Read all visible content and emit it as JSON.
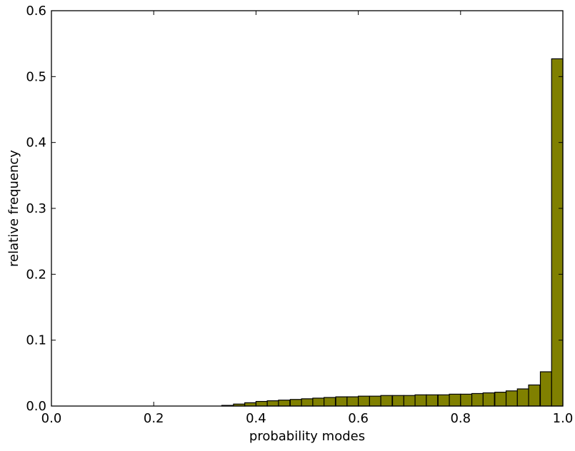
{
  "chart_data": {
    "type": "bar",
    "title": "",
    "xlabel": "probability modes",
    "ylabel": "relative frequency",
    "xlim": [
      0.0,
      1.0
    ],
    "ylim": [
      0.0,
      0.6
    ],
    "xticks": [
      "0.0",
      "0.2",
      "0.4",
      "0.6",
      "0.8",
      "1.0"
    ],
    "yticks": [
      "0.0",
      "0.1",
      "0.2",
      "0.3",
      "0.4",
      "0.5",
      "0.6"
    ],
    "grid": false,
    "legend": "none",
    "bin_width": 0.0222,
    "bins": [
      {
        "x0": 0.333,
        "value": 0.001
      },
      {
        "x0": 0.356,
        "value": 0.003
      },
      {
        "x0": 0.378,
        "value": 0.005
      },
      {
        "x0": 0.4,
        "value": 0.007
      },
      {
        "x0": 0.422,
        "value": 0.008
      },
      {
        "x0": 0.444,
        "value": 0.009
      },
      {
        "x0": 0.467,
        "value": 0.01
      },
      {
        "x0": 0.489,
        "value": 0.011
      },
      {
        "x0": 0.511,
        "value": 0.012
      },
      {
        "x0": 0.533,
        "value": 0.013
      },
      {
        "x0": 0.556,
        "value": 0.014
      },
      {
        "x0": 0.578,
        "value": 0.014
      },
      {
        "x0": 0.6,
        "value": 0.015
      },
      {
        "x0": 0.622,
        "value": 0.015
      },
      {
        "x0": 0.644,
        "value": 0.016
      },
      {
        "x0": 0.667,
        "value": 0.016
      },
      {
        "x0": 0.689,
        "value": 0.016
      },
      {
        "x0": 0.711,
        "value": 0.017
      },
      {
        "x0": 0.733,
        "value": 0.017
      },
      {
        "x0": 0.756,
        "value": 0.017
      },
      {
        "x0": 0.778,
        "value": 0.018
      },
      {
        "x0": 0.8,
        "value": 0.018
      },
      {
        "x0": 0.822,
        "value": 0.019
      },
      {
        "x0": 0.844,
        "value": 0.02
      },
      {
        "x0": 0.867,
        "value": 0.021
      },
      {
        "x0": 0.889,
        "value": 0.023
      },
      {
        "x0": 0.911,
        "value": 0.026
      },
      {
        "x0": 0.933,
        "value": 0.032
      },
      {
        "x0": 0.956,
        "value": 0.052
      },
      {
        "x0": 0.978,
        "value": 0.527
      }
    ],
    "colors": {
      "bar_fill": "#808000",
      "bar_edge": "#000000",
      "axes": "#000000",
      "background": "#ffffff"
    }
  }
}
